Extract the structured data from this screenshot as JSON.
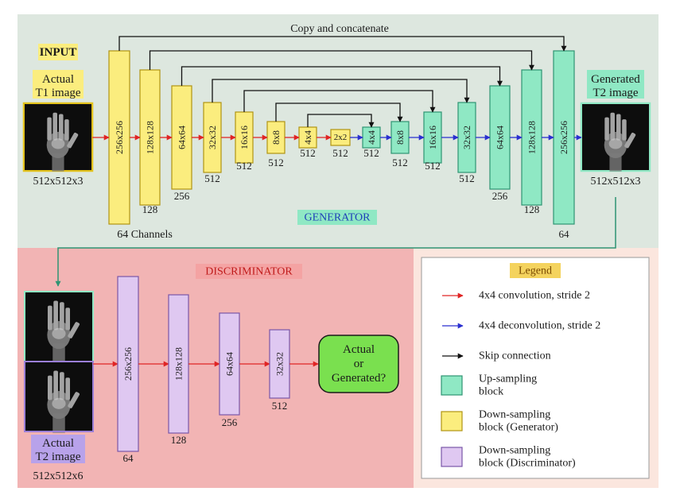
{
  "colors": {
    "generator_bg": "#dde7df",
    "discriminator_bg": "#f2b4b4",
    "legend_bg": "#fbe6de",
    "down_generator": "#fbed7e",
    "down_generator_border": "#b19413",
    "up_block": "#8fe8c4",
    "up_block_border": "#2f9473",
    "down_discriminator": "#dfc8f1",
    "down_discriminator_border": "#7a56a8",
    "conv_arrow": "#e02424",
    "deconv_arrow": "#2a2fd0",
    "skip_arrow": "#111111",
    "output_box": "#7ae04f"
  },
  "generator": {
    "title": "GENERATOR",
    "copy_label": "Copy and concatenate",
    "channels_label": "64 Channels",
    "input_tag": "INPUT",
    "input_label": [
      "Actual",
      "T1 image"
    ],
    "input_size": "512x512x3",
    "output_label": [
      "Generated",
      "T2 image"
    ],
    "output_size": "512x512x3",
    "encoder": [
      {
        "res": "256x256",
        "ch": ""
      },
      {
        "res": "128x128",
        "ch": "128"
      },
      {
        "res": "64x64",
        "ch": "256"
      },
      {
        "res": "32x32",
        "ch": "512"
      },
      {
        "res": "16x16",
        "ch": "512"
      },
      {
        "res": "8x8",
        "ch": "512"
      },
      {
        "res": "4x4",
        "ch": "512"
      }
    ],
    "bottleneck": {
      "res": "2x2",
      "ch": "512"
    },
    "decoder": [
      {
        "res": "4x4",
        "ch": "512"
      },
      {
        "res": "8x8",
        "ch": "512"
      },
      {
        "res": "16x16",
        "ch": "512"
      },
      {
        "res": "32x32",
        "ch": "512"
      },
      {
        "res": "64x64",
        "ch": "256"
      },
      {
        "res": "128x128",
        "ch": "128"
      },
      {
        "res": "256x256",
        "ch": "64"
      }
    ]
  },
  "discriminator": {
    "title": "DISCRIMINATOR",
    "input_label": [
      "Actual",
      "T2 image"
    ],
    "input_size": "512x512x6",
    "blocks": [
      {
        "res": "256x256",
        "ch": "64"
      },
      {
        "res": "128x128",
        "ch": "128"
      },
      {
        "res": "64x64",
        "ch": "256"
      },
      {
        "res": "32x32",
        "ch": "512"
      }
    ],
    "output": [
      "Actual",
      "or",
      "Generated?"
    ]
  },
  "legend": {
    "title": "Legend",
    "items": [
      {
        "kind": "conv_arrow",
        "label": [
          "4x4 convolution, stride 2"
        ]
      },
      {
        "kind": "deconv_arrow",
        "label": [
          "4x4 deconvolution, stride 2"
        ]
      },
      {
        "kind": "skip_arrow",
        "label": [
          "Skip connection"
        ]
      },
      {
        "kind": "up_block",
        "label": [
          "Up-sampling",
          "block"
        ]
      },
      {
        "kind": "down_generator",
        "label": [
          "Down-sampling",
          "block (Generator)"
        ]
      },
      {
        "kind": "down_discriminator",
        "label": [
          "Down-sampling",
          "block (Discriminator)"
        ]
      }
    ]
  }
}
